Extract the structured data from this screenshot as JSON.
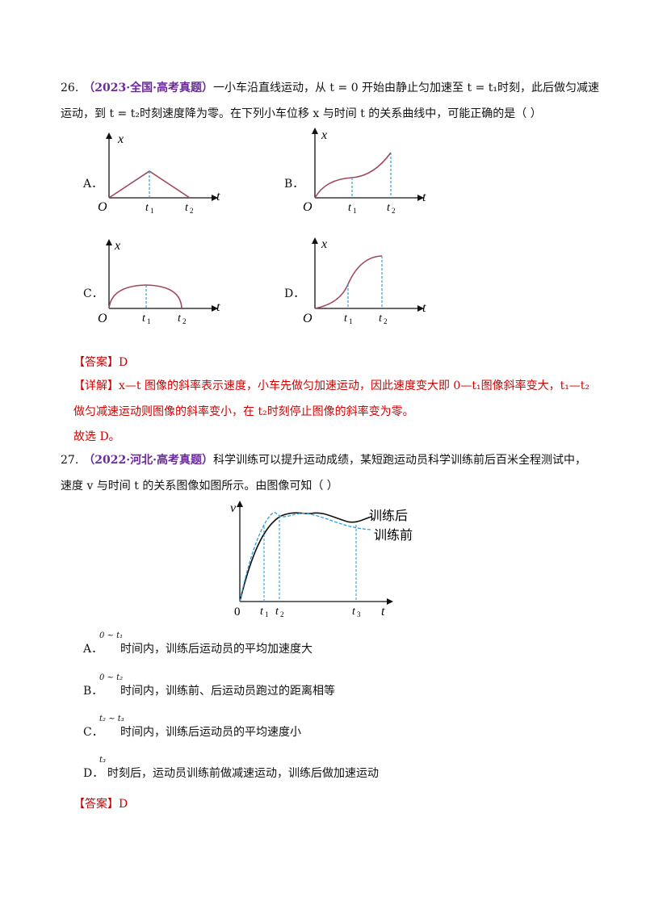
{
  "q26": {
    "number": "26.",
    "source": "（2023·全国·高考真题）",
    "line1": "一小车沿直线运动，从 t = 0 开始由静止匀加速至 t = t₁时刻，此后做匀减速",
    "line2": "运动，到 t = t₂时刻速度降为零。在下列小车位移 x 与时间 t 的关系曲线中，可能正确的是（    ）",
    "options": [
      {
        "label": "A．"
      },
      {
        "label": "B．"
      },
      {
        "label": "C．"
      },
      {
        "label": "D．"
      }
    ],
    "graph": {
      "y": "x",
      "x": "t",
      "origin": "O",
      "t1": "t",
      "t1_sub": "1",
      "t2": "t",
      "t2_sub": "2"
    },
    "answer_tag": "【答案】",
    "answer_value": "D",
    "detail_tag": "【详解】",
    "detail_line1": "x—t 图像的斜率表示速度，小车先做匀加速运动，因此速度变大即 0—t₁图像斜率变大，t₁—t₂",
    "detail_line2": "做匀减速运动则图像的斜率变小，在 t₂时刻停止图像的斜率变为零。",
    "conclusion": "故选 D。"
  },
  "q27": {
    "number": "27.",
    "source": "（2022·河北·高考真题）",
    "line1": "科学训练可以提升运动成绩，某短跑运动员科学训练前后百米全程测试中，",
    "line2": "速度 v 与时间 t 的关系图像如图所示。由图像可知（      ）",
    "graph": {
      "y": "v",
      "x": "t",
      "origin": "0",
      "after": "训练后",
      "before": "训练前",
      "t1": "t",
      "t1_sub": "1",
      "t2": "t",
      "t2_sub": "2",
      "t3": "t",
      "t3_sub": "3"
    },
    "options": [
      {
        "label": "A．",
        "range": "0 ~ t₁",
        "text": "时间内，训练后运动员的平均加速度大"
      },
      {
        "label": "B．",
        "range": "0 ~ t₂",
        "text": "时间内，训练前、后运动员跑过的距离相等"
      },
      {
        "label": "C．",
        "range": "t₂ ~ t₃",
        "text": "时间内，训练后运动员的平均速度小"
      },
      {
        "label": "D．",
        "range": "t₃",
        "text": "时刻后，运动员训练前做减速运动，训练后做加速运动"
      }
    ],
    "answer_tag": "【答案】",
    "answer_value": "D"
  },
  "colors": {
    "curve": "#a0485a",
    "dash": "#2e9ee0",
    "purple": "#6a2a9a",
    "red": "#d20000"
  }
}
